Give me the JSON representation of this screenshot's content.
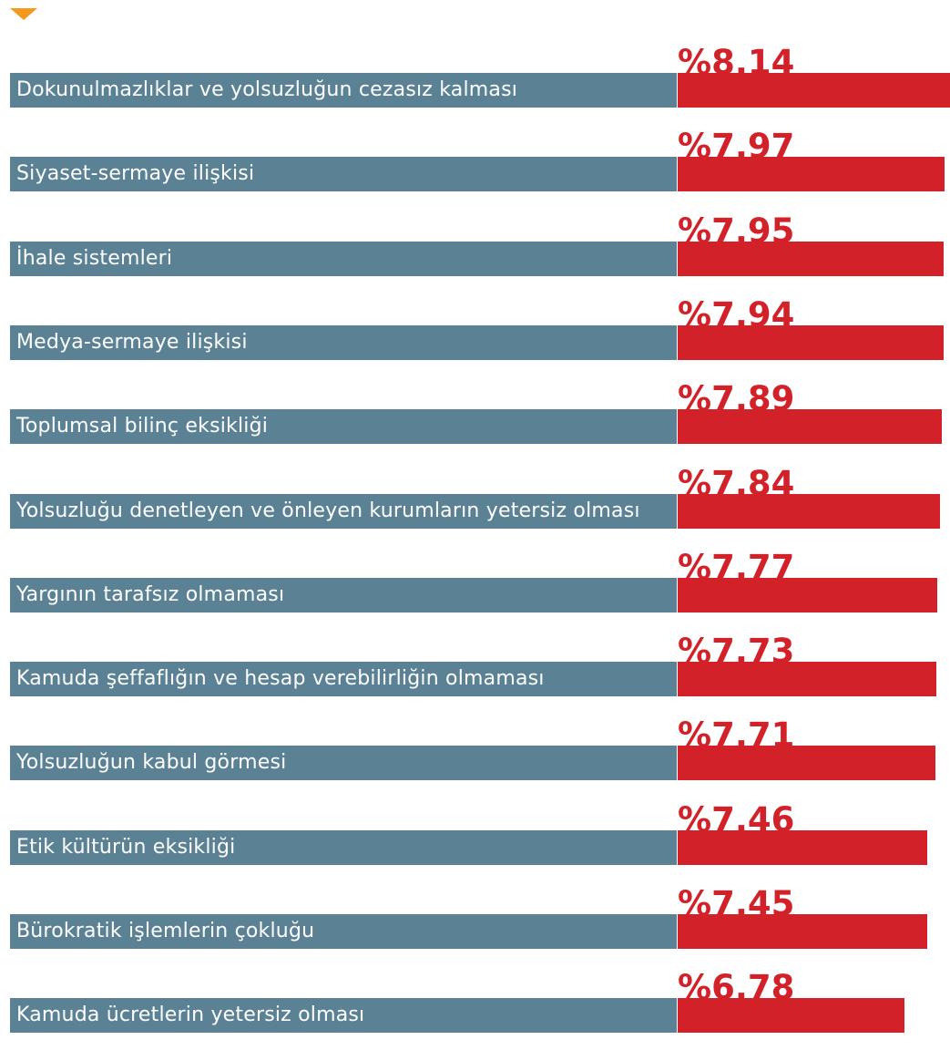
{
  "chart_data": {
    "type": "bar",
    "orientation": "horizontal",
    "categories": [
      "Dokunulmazlıklar ve yolsuzluğun cezasız kalması",
      "Siyaset-sermaye ilişkisi",
      "İhale sistemleri",
      "Medya-sermaye ilişkisi",
      "Toplumsal bilinç eksikliği",
      "Yolsuzluğu denetleyen ve önleyen kurumların yetersiz olması",
      "Yargının tarafsız olmaması",
      "Kamuda şeffaflığın ve hesap verebilirliğin olmaması",
      "Yolsuzluğun kabul görmesi",
      "Etik kültürün eksikliği",
      "Bürokratik işlemlerin çokluğu",
      "Kamuda ücretlerin yetersiz olması"
    ],
    "values": [
      8.14,
      7.97,
      7.95,
      7.94,
      7.89,
      7.84,
      7.77,
      7.73,
      7.71,
      7.46,
      7.45,
      6.78
    ],
    "value_labels": [
      "%8,14",
      "%7,97",
      "%7,95",
      "%7,94",
      "%7,89",
      "%7,84",
      "%7,77",
      "%7,73",
      "%7,71",
      "%7,46",
      "%7,45",
      "%6,78"
    ],
    "title": "",
    "xlabel": "",
    "ylabel": "",
    "grid": false,
    "legend": "none"
  },
  "colors": {
    "category_bar": "#5b8194",
    "value_bar": "#d3212a",
    "value_text": "#d3212a",
    "marker": "#f39a1e"
  },
  "icons": {
    "marker": "triangle-down-icon"
  }
}
